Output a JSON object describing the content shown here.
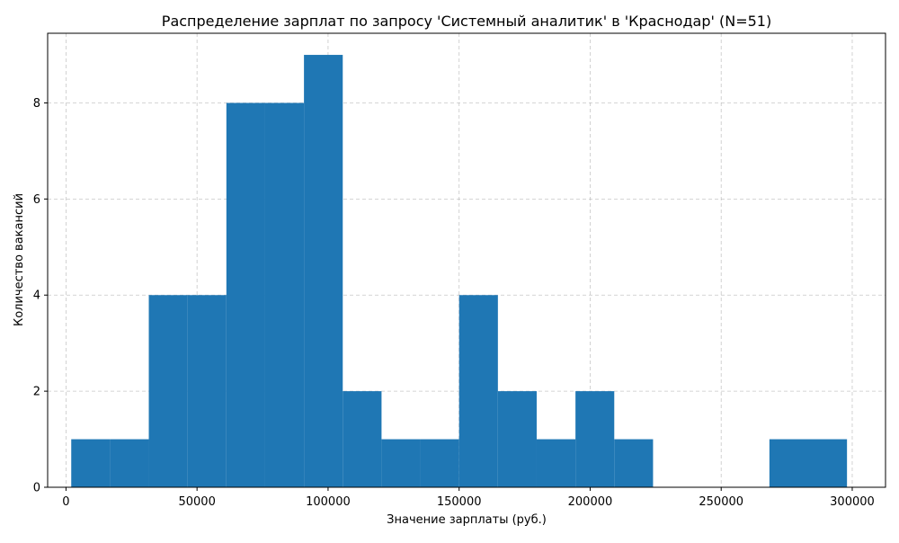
{
  "chart_data": {
    "type": "bar",
    "subtype": "histogram",
    "title": "Распределение зарплат по запросу 'Системный аналитик' в 'Краснодар' (N=51)",
    "xlabel": "Значение зарплаты (руб.)",
    "ylabel": "Количество вакансий",
    "xlim": [
      -7000,
      312700
    ],
    "ylim": [
      0,
      9.45
    ],
    "xticks": [
      0,
      50000,
      100000,
      150000,
      200000,
      250000,
      300000
    ],
    "yticks": [
      0,
      2,
      4,
      6,
      8
    ],
    "grid": true,
    "grid_style": "dashed",
    "bar_color": "#1f77b4",
    "bins": [
      {
        "x0": 2000,
        "x1": 16800,
        "count": 1
      },
      {
        "x0": 16800,
        "x1": 31600,
        "count": 1
      },
      {
        "x0": 31600,
        "x1": 46400,
        "count": 4
      },
      {
        "x0": 46400,
        "x1": 61200,
        "count": 4
      },
      {
        "x0": 61200,
        "x1": 76000,
        "count": 8
      },
      {
        "x0": 76000,
        "x1": 90800,
        "count": 8
      },
      {
        "x0": 90800,
        "x1": 105600,
        "count": 9
      },
      {
        "x0": 105600,
        "x1": 120400,
        "count": 2
      },
      {
        "x0": 120400,
        "x1": 135200,
        "count": 1
      },
      {
        "x0": 135200,
        "x1": 150000,
        "count": 1
      },
      {
        "x0": 150000,
        "x1": 164800,
        "count": 4
      },
      {
        "x0": 164800,
        "x1": 179600,
        "count": 2
      },
      {
        "x0": 179600,
        "x1": 194400,
        "count": 1
      },
      {
        "x0": 194400,
        "x1": 209200,
        "count": 2
      },
      {
        "x0": 209200,
        "x1": 224000,
        "count": 1
      },
      {
        "x0": 224000,
        "x1": 238800,
        "count": 0
      },
      {
        "x0": 238800,
        "x1": 253600,
        "count": 0
      },
      {
        "x0": 253600,
        "x1": 268400,
        "count": 0
      },
      {
        "x0": 268400,
        "x1": 283200,
        "count": 1
      },
      {
        "x0": 283200,
        "x1": 298000,
        "count": 1
      }
    ]
  }
}
